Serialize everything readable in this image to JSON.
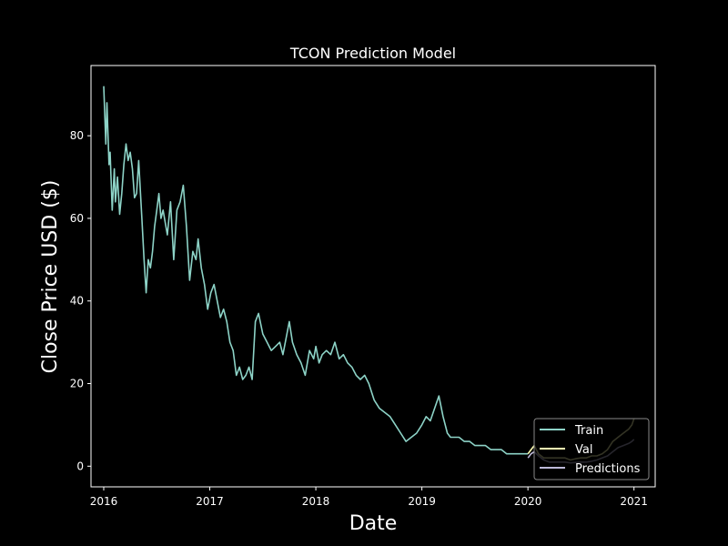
{
  "chart_data": {
    "type": "line",
    "title": "TCON Prediction Model",
    "xlabel": "Date",
    "ylabel": "Close Price USD ($)",
    "xlim": [
      2015.88,
      2021.2
    ],
    "ylim": [
      -5,
      97
    ],
    "x_ticks": [
      {
        "value": 2016,
        "label": "2016"
      },
      {
        "value": 2017,
        "label": "2017"
      },
      {
        "value": 2018,
        "label": "2018"
      },
      {
        "value": 2019,
        "label": "2019"
      },
      {
        "value": 2020,
        "label": "2020"
      },
      {
        "value": 2021,
        "label": "2021"
      }
    ],
    "y_ticks": [
      {
        "value": 0,
        "label": "0"
      },
      {
        "value": 20,
        "label": "20"
      },
      {
        "value": 40,
        "label": "40"
      },
      {
        "value": 60,
        "label": "60"
      },
      {
        "value": 80,
        "label": "80"
      }
    ],
    "grid": false,
    "legend_position": "lower-right",
    "series": [
      {
        "name": "Train",
        "color": "#8dd3c7",
        "x": [
          2016.0,
          2016.02,
          2016.03,
          2016.05,
          2016.06,
          2016.08,
          2016.1,
          2016.11,
          2016.13,
          2016.15,
          2016.17,
          2016.19,
          2016.21,
          2016.23,
          2016.25,
          2016.27,
          2016.29,
          2016.31,
          2016.33,
          2016.36,
          2016.38,
          2016.4,
          2016.42,
          2016.44,
          2016.46,
          2016.48,
          2016.5,
          2016.52,
          2016.54,
          2016.56,
          2016.6,
          2016.63,
          2016.66,
          2016.69,
          2016.72,
          2016.75,
          2016.78,
          2016.81,
          2016.84,
          2016.87,
          2016.89,
          2016.92,
          2016.95,
          2016.98,
          2017.01,
          2017.04,
          2017.07,
          2017.1,
          2017.13,
          2017.16,
          2017.19,
          2017.22,
          2017.25,
          2017.28,
          2017.31,
          2017.34,
          2017.37,
          2017.4,
          2017.43,
          2017.46,
          2017.5,
          2017.54,
          2017.58,
          2017.62,
          2017.66,
          2017.69,
          2017.72,
          2017.75,
          2017.78,
          2017.82,
          2017.86,
          2017.9,
          2017.94,
          2017.98,
          2018.0,
          2018.03,
          2018.06,
          2018.1,
          2018.14,
          2018.18,
          2018.22,
          2018.26,
          2018.3,
          2018.34,
          2018.38,
          2018.42,
          2018.46,
          2018.5,
          2018.55,
          2018.6,
          2018.65,
          2018.7,
          2018.75,
          2018.8,
          2018.85,
          2018.9,
          2018.95,
          2019.0,
          2019.04,
          2019.08,
          2019.12,
          2019.16,
          2019.2,
          2019.24,
          2019.27,
          2019.3,
          2019.35,
          2019.4,
          2019.45,
          2019.5,
          2019.55,
          2019.6,
          2019.65,
          2019.7,
          2019.75,
          2019.8,
          2019.85,
          2019.9,
          2019.95,
          2020.0
        ],
        "y": [
          92,
          78,
          88,
          73,
          76,
          62,
          72,
          64,
          70,
          61,
          66,
          73,
          78,
          74,
          76,
          72,
          65,
          66,
          74,
          60,
          50,
          42,
          50,
          48,
          52,
          58,
          62,
          66,
          60,
          62,
          56,
          64,
          50,
          62,
          64,
          68,
          58,
          45,
          52,
          50,
          55,
          48,
          44,
          38,
          42,
          44,
          40,
          36,
          38,
          35,
          30,
          28,
          22,
          24,
          21,
          22,
          24,
          21,
          35,
          37,
          32,
          30,
          28,
          29,
          30,
          27,
          31,
          35,
          30,
          27,
          25,
          22,
          28,
          26,
          29,
          25,
          27,
          28,
          27,
          30,
          26,
          27,
          25,
          24,
          22,
          21,
          22,
          20,
          16,
          14,
          13,
          12,
          10,
          8,
          6,
          7,
          8,
          10,
          12,
          11,
          14,
          17,
          12,
          8,
          7,
          7,
          7,
          6,
          6,
          5,
          5,
          5,
          4,
          4,
          4,
          3,
          3,
          3,
          3,
          3
        ]
      },
      {
        "name": "Val",
        "color": "#ffffb3",
        "x": [
          2020.0,
          2020.03,
          2020.06,
          2020.1,
          2020.15,
          2020.2,
          2020.25,
          2020.3,
          2020.35,
          2020.4,
          2020.45,
          2020.5,
          2020.55,
          2020.6,
          2020.65,
          2020.7,
          2020.75,
          2020.8,
          2020.85,
          2020.9,
          2020.95,
          2020.98,
          2021.0
        ],
        "y": [
          3,
          4,
          5,
          3,
          2,
          2,
          2,
          2,
          2,
          1.5,
          1.8,
          2,
          2,
          2.5,
          2.5,
          3,
          4,
          6,
          7,
          8,
          9,
          10,
          11.5
        ]
      },
      {
        "name": "Predictions",
        "color": "#bebada",
        "x": [
          2020.0,
          2020.03,
          2020.06,
          2020.1,
          2020.15,
          2020.2,
          2020.25,
          2020.3,
          2020.35,
          2020.4,
          2020.45,
          2020.5,
          2020.55,
          2020.6,
          2020.65,
          2020.7,
          2020.75,
          2020.8,
          2020.85,
          2020.9,
          2020.95,
          2020.98,
          2021.0
        ],
        "y": [
          2,
          3,
          3.5,
          2.5,
          1.5,
          1,
          1,
          1,
          1,
          0.8,
          0.9,
          1,
          1,
          1.2,
          1.5,
          2,
          2.5,
          3.5,
          4.5,
          5,
          5.5,
          6,
          6.5
        ]
      }
    ]
  }
}
